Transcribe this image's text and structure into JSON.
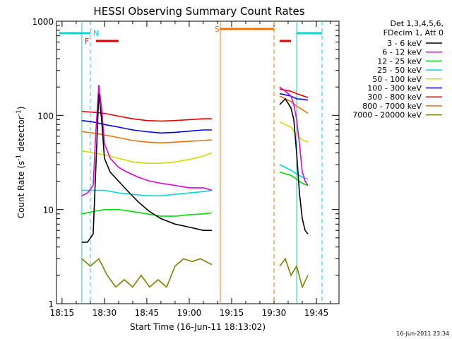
{
  "chart_data": {
    "type": "line",
    "title": "HESSI Observing Summary Count Rates",
    "xlabel": "Start Time (16-Jun-11 18:13:02)",
    "ylabel_main": "Count Rate (s",
    "ylabel_sup1": "-1",
    "ylabel_mid": " detector",
    "ylabel_sup2": "-1",
    "ylabel_end": ")",
    "x_range_minutes": [
      18.217,
      19.883
    ],
    "y_range": [
      1,
      1000
    ],
    "y_scale": "log",
    "x_ticks": [
      "18:15",
      "18:30",
      "18:45",
      "19:00",
      "19:15",
      "19:30",
      "19:45"
    ],
    "y_ticks": [
      "1",
      "10",
      "100",
      "1000"
    ],
    "legend_header": [
      "Det 1,3,4,5,6,",
      "FDecim 1, Att 0"
    ],
    "series": [
      {
        "name": "3 - 6 keV",
        "color": "#000000",
        "segments": [
          {
            "x": [
              "18:22",
              "18:24",
              "18:26",
              "18:27",
              "18:28",
              "18:29",
              "18:30",
              "18:32",
              "18:35",
              "18:38",
              "18:42",
              "18:46",
              "18:50",
              "18:55",
              "19:00",
              "19:05",
              "19:08"
            ],
            "y": [
              4.5,
              4.5,
              5.5,
              30,
              170,
              90,
              35,
              25,
              20,
              16,
              12,
              9.5,
              8,
              7,
              6.5,
              6,
              6
            ]
          },
          {
            "x": [
              "19:32",
              "19:34",
              "19:36",
              "19:37",
              "19:38",
              "19:39",
              "19:40",
              "19:41",
              "19:42"
            ],
            "y": [
              130,
              150,
              120,
              90,
              40,
              15,
              8,
              6,
              5.5
            ]
          }
        ]
      },
      {
        "name": "6 - 12 keV",
        "color": "#e000e0",
        "segments": [
          {
            "x": [
              "18:22",
              "18:24",
              "18:26",
              "18:27",
              "18:28",
              "18:29",
              "18:30",
              "18:32",
              "18:35",
              "18:38",
              "18:42",
              "18:46",
              "18:50",
              "18:55",
              "19:00",
              "19:05",
              "19:08"
            ],
            "y": [
              14,
              15,
              18,
              70,
              210,
              120,
              50,
              35,
              28,
              25,
              22,
              20,
              19,
              18,
              17,
              17,
              16
            ]
          },
          {
            "x": [
              "19:32",
              "19:34",
              "19:36",
              "19:37",
              "19:38",
              "19:39",
              "19:40",
              "19:41",
              "19:42"
            ],
            "y": [
              200,
              180,
              160,
              130,
              90,
              50,
              25,
              20,
              18
            ]
          }
        ]
      },
      {
        "name": "12 - 25 keV",
        "color": "#00e000",
        "segments": [
          {
            "x": [
              "18:22",
              "18:26",
              "18:30",
              "18:35",
              "18:40",
              "18:45",
              "18:50",
              "18:55",
              "19:00",
              "19:05",
              "19:08"
            ],
            "y": [
              9,
              9.5,
              10,
              10,
              9.5,
              9,
              8.5,
              8.5,
              8.8,
              9,
              9.2
            ]
          },
          {
            "x": [
              "19:32",
              "19:34",
              "19:36",
              "19:38",
              "19:40",
              "19:42"
            ],
            "y": [
              25,
              24,
              23,
              21,
              19,
              18
            ]
          }
        ]
      },
      {
        "name": "25 - 50 keV",
        "color": "#00d8d8",
        "segments": [
          {
            "x": [
              "18:22",
              "18:26",
              "18:30",
              "18:35",
              "18:40",
              "18:45",
              "18:50",
              "18:55",
              "19:00",
              "19:05",
              "19:08"
            ],
            "y": [
              16,
              16,
              16,
              15,
              14.5,
              14,
              14,
              14.5,
              15,
              15.5,
              16
            ]
          },
          {
            "x": [
              "19:32",
              "19:34",
              "19:36",
              "19:38",
              "19:40",
              "19:42"
            ],
            "y": [
              30,
              28,
              26,
              24,
              22,
              21
            ]
          }
        ]
      },
      {
        "name": "50 - 100 keV",
        "color": "#d8d800",
        "segments": [
          {
            "x": [
              "18:22",
              "18:26",
              "18:30",
              "18:35",
              "18:40",
              "18:45",
              "18:50",
              "18:55",
              "19:00",
              "19:05",
              "19:08"
            ],
            "y": [
              42,
              40,
              38,
              35,
              32,
              31,
              31,
              32,
              34,
              37,
              40
            ]
          },
          {
            "x": [
              "19:32",
              "19:34",
              "19:36",
              "19:38",
              "19:40",
              "19:42"
            ],
            "y": [
              85,
              80,
              75,
              62,
              55,
              52
            ]
          }
        ]
      },
      {
        "name": "100 - 300 keV",
        "color": "#0000e0",
        "segments": [
          {
            "x": [
              "18:22",
              "18:26",
              "18:30",
              "18:35",
              "18:40",
              "18:45",
              "18:50",
              "18:55",
              "19:00",
              "19:05",
              "19:08"
            ],
            "y": [
              88,
              85,
              80,
              75,
              70,
              67,
              65,
              66,
              68,
              70,
              70
            ]
          },
          {
            "x": [
              "19:32",
              "19:34",
              "19:36",
              "19:38",
              "19:40",
              "19:42"
            ],
            "y": [
              170,
              165,
              160,
              150,
              148,
              145
            ]
          }
        ]
      },
      {
        "name": "300 - 800 keV",
        "color": "#e00000",
        "segments": [
          {
            "x": [
              "18:22",
              "18:26",
              "18:30",
              "18:35",
              "18:40",
              "18:45",
              "18:50",
              "18:55",
              "19:00",
              "19:05",
              "19:08"
            ],
            "y": [
              110,
              108,
              105,
              98,
              92,
              88,
              87,
              88,
              90,
              92,
              92
            ]
          },
          {
            "x": [
              "19:32",
              "19:34",
              "19:36",
              "19:38",
              "19:40",
              "19:42"
            ],
            "y": [
              190,
              185,
              180,
              170,
              162,
              155
            ]
          }
        ]
      },
      {
        "name": "800 - 7000 keV",
        "color": "#f07000",
        "segments": [
          {
            "x": [
              "18:22",
              "18:26",
              "18:30",
              "18:35",
              "18:40",
              "18:45",
              "18:50",
              "18:55",
              "19:00",
              "19:05",
              "19:08"
            ],
            "y": [
              67,
              65,
              62,
              58,
              54,
              52,
              51,
              52,
              53,
              54,
              55
            ]
          },
          {
            "x": [
              "19:32",
              "19:34",
              "19:36",
              "19:38",
              "19:40",
              "19:42"
            ],
            "y": [
              160,
              150,
              140,
              125,
              115,
              105
            ]
          }
        ]
      },
      {
        "name": "7000 - 20000 keV",
        "color": "#808000",
        "segments": [
          {
            "x": [
              "18:22",
              "18:25",
              "18:28",
              "18:31",
              "18:34",
              "18:37",
              "18:40",
              "18:43",
              "18:46",
              "18:49",
              "18:52",
              "18:55",
              "18:58",
              "19:01",
              "19:04",
              "19:08"
            ],
            "y": [
              3,
              2.5,
              3,
              2,
              1.5,
              1.8,
              1.5,
              2,
              1.5,
              1.8,
              1.5,
              2.5,
              3,
              2.8,
              3,
              2.6
            ]
          },
          {
            "x": [
              "19:32",
              "19:34",
              "19:36",
              "19:38",
              "19:40",
              "19:42"
            ],
            "y": [
              2.5,
              3,
              2,
              2.5,
              1.5,
              2
            ]
          }
        ]
      }
    ],
    "flags": [
      {
        "label": "N",
        "color": "#00d8d8"
      },
      {
        "label": "F",
        "color": "#e00000"
      },
      {
        "label": "S",
        "color": "#f07000"
      }
    ],
    "timestamp": "16-Jun-2011 23:34"
  }
}
